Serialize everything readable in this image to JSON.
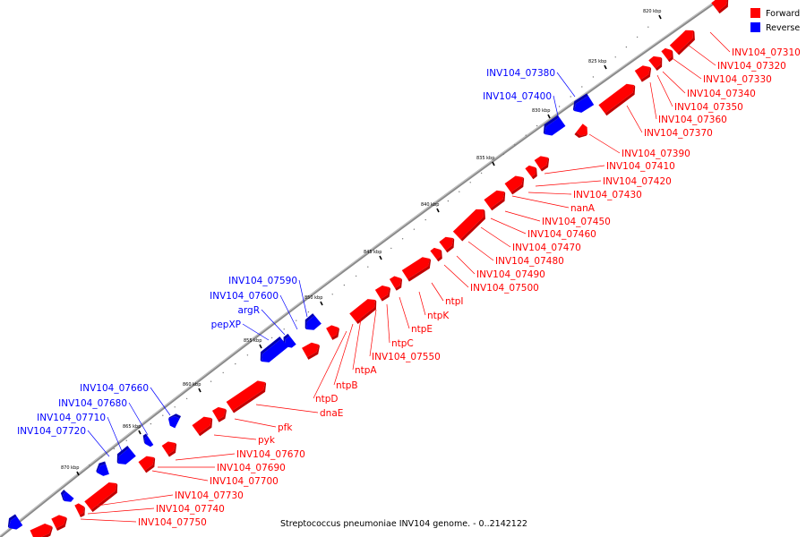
{
  "caption": "Streptococcus pneumoniae INV104 genome. - 0..2142122",
  "colors": {
    "forward": "#ff0000",
    "reverse": "#0000ff",
    "backbone": "#808080"
  },
  "legend": [
    {
      "label": "Forward",
      "color": "#ff0000"
    },
    {
      "label": "Reverse",
      "color": "#0000ff"
    }
  ],
  "ticks": [
    "820 kbp",
    "825 kbp",
    "830 kbp",
    "835 kbp",
    "840 kbp",
    "845 kbp",
    "850 kbp",
    "855 kbp",
    "860 kbp",
    "865 kbp",
    "870 kbp"
  ],
  "forward_genes": [
    "INV104_07310",
    "INV104_07320",
    "INV104_07330",
    "INV104_07340",
    "INV104_07350",
    "INV104_07360",
    "INV104_07370",
    "INV104_07390",
    "INV104_07410",
    "INV104_07420",
    "INV104_07430",
    "nanA",
    "INV104_07450",
    "INV104_07460",
    "INV104_07470",
    "INV104_07480",
    "INV104_07490",
    "INV104_07500",
    "ntpI",
    "ntpK",
    "ntpE",
    "ntpC",
    "INV104_07550",
    "ntpA",
    "ntpB",
    "ntpD",
    "dnaE",
    "pfk",
    "pyk",
    "INV104_07670",
    "INV104_07690",
    "INV104_07700",
    "INV104_07730",
    "INV104_07740",
    "INV104_07750"
  ],
  "reverse_genes": [
    "INV104_07380",
    "INV104_07400",
    "INV104_07590",
    "INV104_07600",
    "argR",
    "pepXP",
    "INV104_07660",
    "INV104_07680",
    "INV104_07710",
    "INV104_07720"
  ]
}
